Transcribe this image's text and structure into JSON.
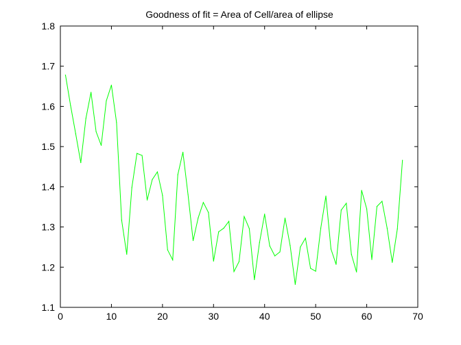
{
  "chart_data": {
    "type": "line",
    "title": "Goodness of fit = Area of Cell/area of ellipse",
    "xlabel": "",
    "ylabel": "",
    "xlim": [
      0,
      70
    ],
    "ylim": [
      1.1,
      1.8
    ],
    "xticks": [
      0,
      10,
      20,
      30,
      40,
      50,
      60,
      70
    ],
    "yticks": [
      1.1,
      1.2,
      1.3,
      1.4,
      1.5,
      1.6,
      1.7,
      1.8
    ],
    "grid": false,
    "series": [
      {
        "color": "#00ff00",
        "x": [
          1,
          2,
          3,
          4,
          5,
          6,
          7,
          8,
          9,
          10,
          11,
          12,
          13,
          14,
          15,
          16,
          17,
          18,
          19,
          20,
          21,
          22,
          23,
          24,
          25,
          26,
          27,
          28,
          29,
          30,
          31,
          32,
          33,
          34,
          35,
          36,
          37,
          38,
          39,
          40,
          41,
          42,
          43,
          44,
          45,
          46,
          47,
          48,
          49,
          50,
          51,
          52,
          53,
          54,
          55,
          56,
          57,
          58,
          59,
          60,
          61,
          62,
          63,
          64,
          65,
          66,
          67
        ],
        "y": [
          1.678,
          1.602,
          1.532,
          1.46,
          1.57,
          1.635,
          1.537,
          1.503,
          1.614,
          1.653,
          1.56,
          1.317,
          1.232,
          1.398,
          1.483,
          1.478,
          1.367,
          1.418,
          1.437,
          1.379,
          1.243,
          1.218,
          1.43,
          1.486,
          1.381,
          1.266,
          1.323,
          1.361,
          1.336,
          1.215,
          1.288,
          1.297,
          1.314,
          1.189,
          1.214,
          1.326,
          1.296,
          1.169,
          1.261,
          1.332,
          1.253,
          1.228,
          1.238,
          1.322,
          1.254,
          1.157,
          1.25,
          1.272,
          1.197,
          1.19,
          1.297,
          1.377,
          1.245,
          1.207,
          1.342,
          1.359,
          1.232,
          1.188,
          1.391,
          1.345,
          1.219,
          1.351,
          1.364,
          1.297,
          1.212,
          1.295,
          1.466
        ]
      }
    ]
  }
}
